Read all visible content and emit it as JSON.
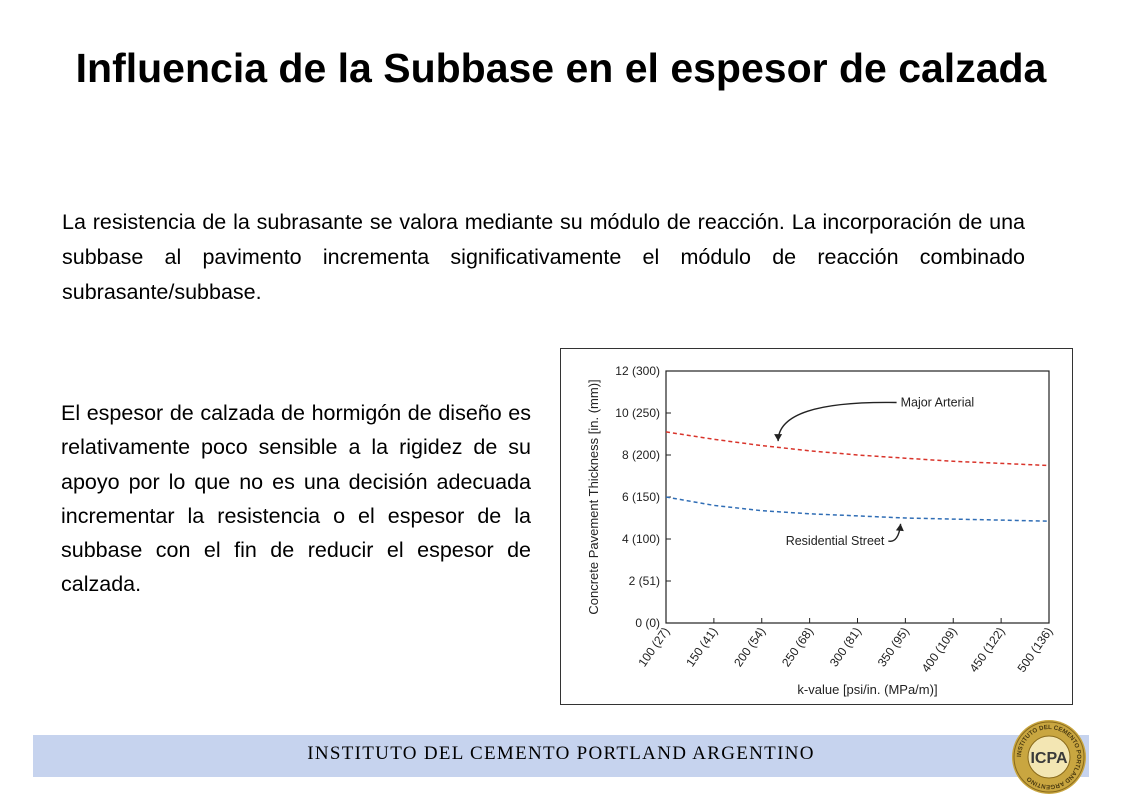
{
  "slide": {
    "title": "Influencia de la Subbase en el espesor de calzada",
    "intro": "La resistencia de la subrasante se valora mediante su módulo de reacción. La incorporación de una subbase al pavimento incrementa significativamente el módulo de reacción combinado subrasante/subbase.",
    "left_paragraph": "El espesor de calzada de hormigón de diseño es relativamente poco sensible a la rigidez de su apoyo por lo que no es una decisión adecuada incrementar la resistencia o el espesor de la subbase con el fin de reducir el espesor de calzada."
  },
  "footer": {
    "text": "INSTITUTO DEL CEMENTO PORTLAND ARGENTINO",
    "logo_text": "ICPA",
    "logo_ring_text": "INSTITUTO DEL CEMENTO PORTLAND ARGENTINO",
    "band_color": "#c6d3ee",
    "logo_color": "#c9a640"
  },
  "chart_data": {
    "type": "line",
    "xlabel": "k-value [psi/in. (MPa/m)]",
    "ylabel": "Concrete Pavement Thickness [in. (mm)]",
    "xlim": [
      100,
      500
    ],
    "ylim": [
      0,
      12
    ],
    "x_ticks": [
      100,
      150,
      200,
      250,
      300,
      350,
      400,
      450,
      500
    ],
    "x_tick_labels": [
      "100 (27)",
      "150 (41)",
      "200 (54)",
      "250 (68)",
      "300 (81)",
      "350 (95)",
      "400 (109)",
      "450 (122)",
      "500 (136)"
    ],
    "y_ticks": [
      0,
      2,
      4,
      6,
      8,
      10,
      12
    ],
    "y_tick_labels": [
      "0 (0)",
      "2 (51)",
      "4 (100)",
      "6 (150)",
      "8 (200)",
      "10 (250)",
      "12 (300)"
    ],
    "grid": false,
    "series": [
      {
        "name": "Major Arterial",
        "color": "#d9342b",
        "style": "dashed",
        "x": [
          100,
          150,
          200,
          250,
          300,
          350,
          400,
          450,
          500
        ],
        "y": [
          9.1,
          8.75,
          8.45,
          8.2,
          8.0,
          7.85,
          7.7,
          7.6,
          7.5
        ]
      },
      {
        "name": "Residential Street",
        "color": "#2f6db5",
        "style": "dashed",
        "x": [
          100,
          150,
          200,
          250,
          300,
          350,
          400,
          450,
          500
        ],
        "y": [
          6.0,
          5.6,
          5.35,
          5.2,
          5.1,
          5.0,
          4.95,
          4.9,
          4.85
        ]
      }
    ],
    "annotations": [
      {
        "text": "Major Arterial",
        "series": 0,
        "points_to_x": 215,
        "label_x": 345,
        "label_y": 10.5
      },
      {
        "text": "Residential Street",
        "series": 1,
        "points_to_x": 345,
        "label_x": 225,
        "label_y": 3.9
      }
    ]
  }
}
